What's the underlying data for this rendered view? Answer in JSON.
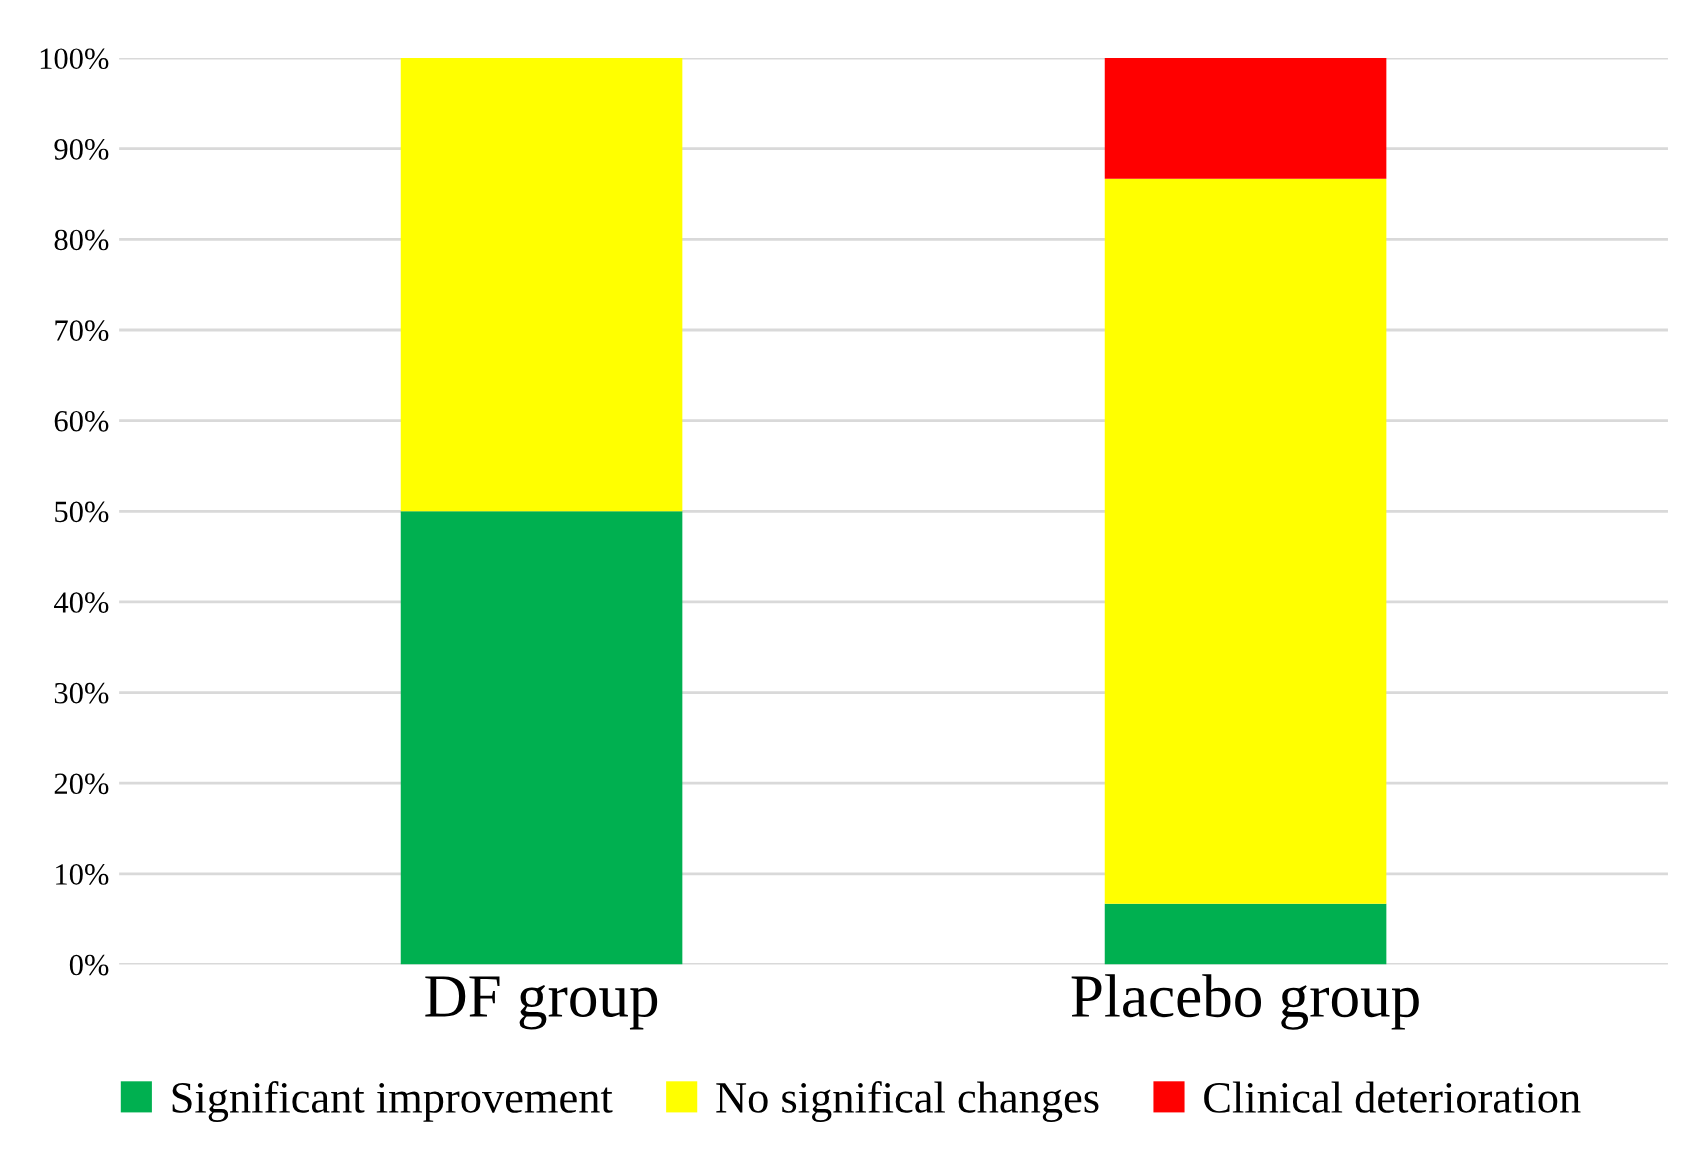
{
  "chart_data": {
    "type": "bar",
    "stacked": true,
    "categories": [
      "DF group",
      "Placebo group"
    ],
    "series": [
      {
        "name": "Significant improvement",
        "color": "#00b050",
        "values": [
          50,
          6.7
        ]
      },
      {
        "name": "No significal changes",
        "color": "#ffff00",
        "values": [
          50,
          80
        ]
      },
      {
        "name": "Clinical deterioration",
        "color": "#ff0000",
        "values": [
          0,
          13.3
        ]
      }
    ],
    "ylim": [
      0,
      100
    ],
    "yticks": [
      {
        "value": 0,
        "label": "0%"
      },
      {
        "value": 10,
        "label": "10%"
      },
      {
        "value": 20,
        "label": "20%"
      },
      {
        "value": 30,
        "label": "30%"
      },
      {
        "value": 40,
        "label": "40%"
      },
      {
        "value": 50,
        "label": "50%"
      },
      {
        "value": 60,
        "label": "60%"
      },
      {
        "value": 70,
        "label": "70%"
      },
      {
        "value": 80,
        "label": "80%"
      },
      {
        "value": 90,
        "label": "90%"
      },
      {
        "value": 100,
        "label": "100%"
      }
    ],
    "grid": "y",
    "legend": "bottom"
  }
}
